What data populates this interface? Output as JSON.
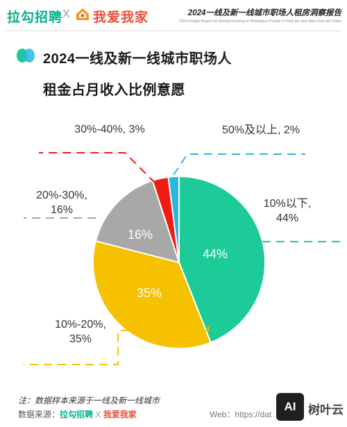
{
  "header": {
    "brand_left": "拉勾招聘",
    "separator": "X",
    "brand_right": "我爱我家",
    "report_title": "2024一线及新一线城市职场人租房洞察报告",
    "report_subtitle": "2024 Insight Report on Rental Housing of Workplace People in First tier and New First tier Cities"
  },
  "title": {
    "line1": "2024一线及新一线城市职场人",
    "line2": "租金占月收入比例意愿"
  },
  "colors": {
    "green": "#1ccb97",
    "yellow": "#f6c100",
    "gray": "#a8a8a8",
    "red": "#ee1c12",
    "blue": "#2bb6e2"
  },
  "chart_data": {
    "type": "pie",
    "categories": [
      "10%以下",
      "10%-20%",
      "20%-30%",
      "30%-40%",
      "50%及以上"
    ],
    "values": [
      44,
      35,
      16,
      3,
      2
    ],
    "slice_labels": [
      "44%",
      "35%",
      "16%",
      "",
      ""
    ],
    "callouts": [
      [
        "10%以下,",
        "44%"
      ],
      [
        "10%-20%,",
        "35%"
      ],
      [
        "20%-30%,",
        "16%"
      ],
      [
        "30%-40%, 3%"
      ],
      [
        "50%及以上, 2%"
      ]
    ]
  },
  "footer": {
    "note": "注：数据样本来源于一线及新一线城市",
    "source_label": "数据来源：",
    "source_lagou": "拉勾招聘",
    "source_x": "X",
    "source_wawj": "我爱我家",
    "web": "Web：https://dat",
    "watermark_icon": "AI",
    "watermark_text": "树叶云"
  }
}
